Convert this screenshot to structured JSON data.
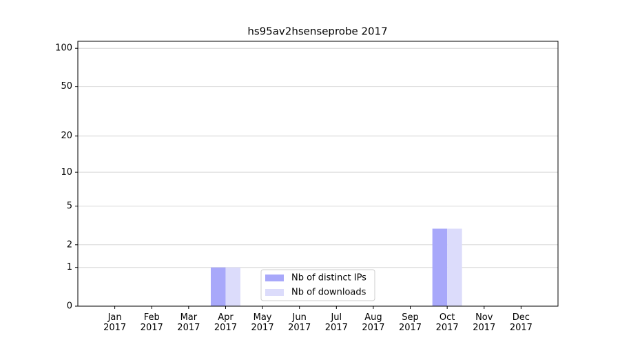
{
  "chart_data": {
    "type": "bar",
    "title": "hs95av2hsenseprobe 2017",
    "categories": [
      "Jan 2017",
      "Feb 2017",
      "Mar 2017",
      "Apr 2017",
      "May 2017",
      "Jun 2017",
      "Jul 2017",
      "Aug 2017",
      "Sep 2017",
      "Oct 2017",
      "Nov 2017",
      "Dec 2017"
    ],
    "series": [
      {
        "name": "Nb of distinct IPs",
        "color": "#a8a8fa",
        "values": [
          0,
          0,
          0,
          1,
          0,
          0,
          0,
          0,
          0,
          3,
          0,
          0
        ]
      },
      {
        "name": "Nb of downloads",
        "color": "#dcdcfb",
        "values": [
          0,
          0,
          0,
          1,
          0,
          0,
          0,
          0,
          0,
          3,
          0,
          0
        ]
      }
    ],
    "yscale": "log1p",
    "ylim": [
      0,
      113.5
    ],
    "yticks": [
      0,
      1,
      2,
      5,
      10,
      20,
      50,
      100
    ],
    "grid": true,
    "legend": "lower center"
  }
}
